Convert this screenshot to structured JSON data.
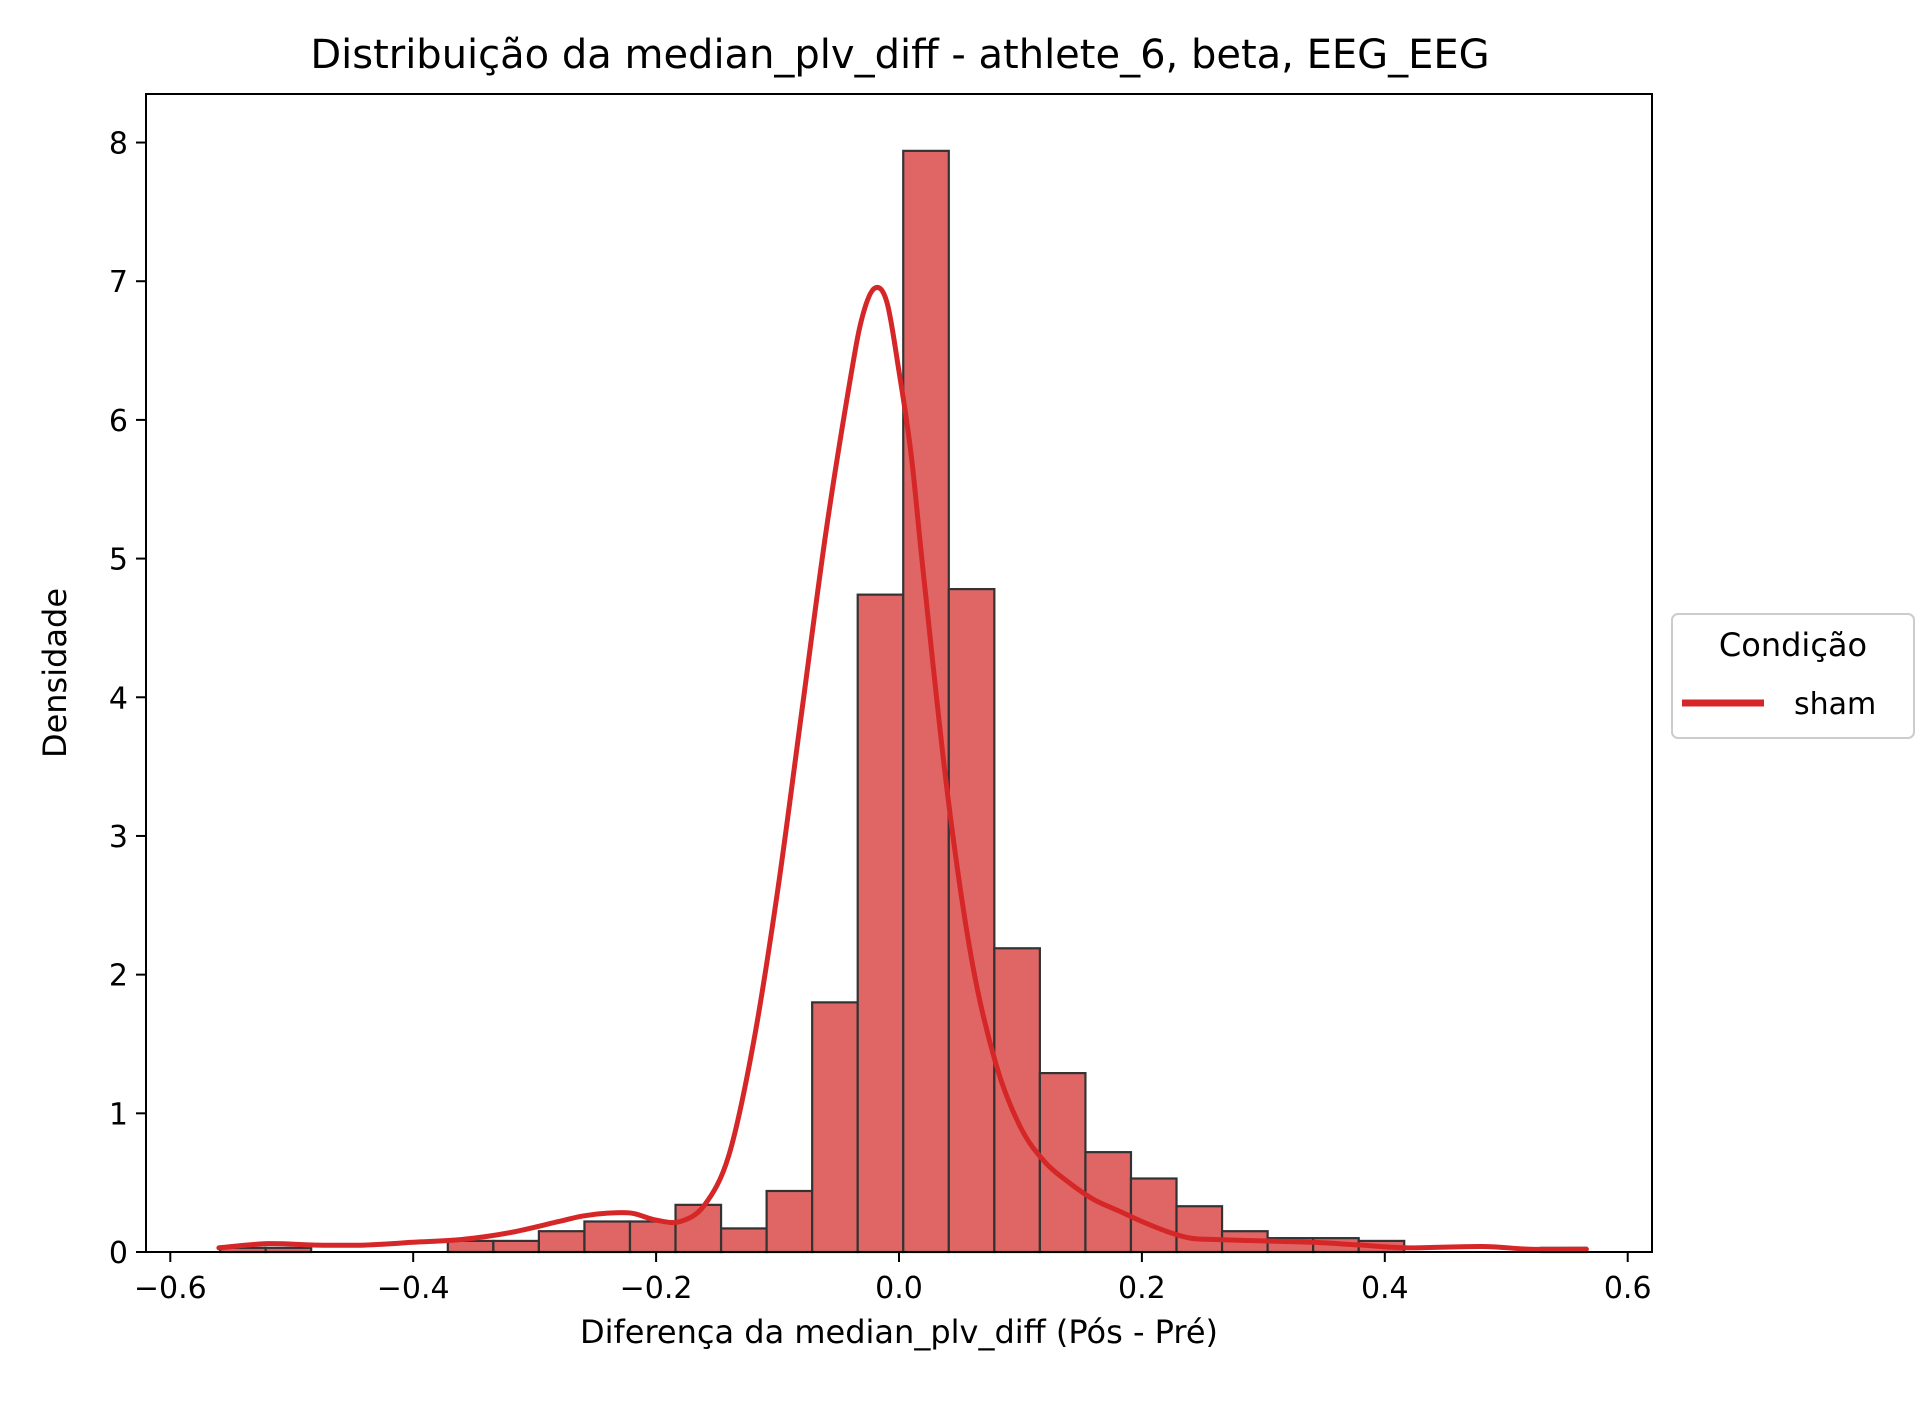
{
  "colors": {
    "bar_fill": "#e06666",
    "bar_edge": "#333333",
    "kde_line": "#d62728",
    "axis": "#000000",
    "background": "#ffffff"
  },
  "chart_data": {
    "type": "bar",
    "title": "Distribuição da median_plv_diff - athlete_6, beta, EEG_EEG",
    "xlabel": "Diferença da median_plv_diff (Pós - Pré)",
    "ylabel": "Densidade",
    "xlim": [
      -0.62,
      0.62
    ],
    "ylim": [
      0,
      8.35
    ],
    "xticks": [
      -0.6,
      -0.4,
      -0.2,
      0.0,
      0.2,
      0.4,
      0.6
    ],
    "xtick_labels": [
      "−0.6",
      "−0.4",
      "−0.2",
      "0.0",
      "0.2",
      "0.4",
      "0.6"
    ],
    "yticks": [
      0,
      1,
      2,
      3,
      4,
      5,
      6,
      7,
      8
    ],
    "ytick_labels": [
      "0",
      "1",
      "2",
      "3",
      "4",
      "5",
      "6",
      "7",
      "8"
    ],
    "grid": false,
    "bins": {
      "x_start": -0.559,
      "width": 0.0375,
      "values": [
        0.03,
        0.03,
        0.0,
        0.0,
        0.0,
        0.08,
        0.08,
        0.15,
        0.22,
        0.22,
        0.34,
        0.17,
        0.44,
        1.8,
        4.74,
        7.94,
        4.78,
        2.19,
        1.29,
        0.72,
        0.53,
        0.33,
        0.15,
        0.1,
        0.1,
        0.08,
        0.0,
        0.0,
        0.0,
        0.03
      ]
    },
    "series": [
      {
        "name": "sham",
        "type": "line",
        "x": [
          -0.56,
          -0.52,
          -0.48,
          -0.44,
          -0.4,
          -0.36,
          -0.32,
          -0.28,
          -0.26,
          -0.24,
          -0.22,
          -0.2,
          -0.18,
          -0.16,
          -0.14,
          -0.12,
          -0.1,
          -0.08,
          -0.06,
          -0.04,
          -0.03,
          -0.02,
          -0.01,
          0.0,
          0.01,
          0.02,
          0.04,
          0.06,
          0.08,
          0.1,
          0.12,
          0.14,
          0.16,
          0.18,
          0.2,
          0.22,
          0.24,
          0.26,
          0.3,
          0.34,
          0.38,
          0.42,
          0.48,
          0.52,
          0.566
        ],
        "y": [
          0.03,
          0.06,
          0.05,
          0.05,
          0.07,
          0.09,
          0.14,
          0.22,
          0.26,
          0.28,
          0.28,
          0.23,
          0.22,
          0.34,
          0.7,
          1.5,
          2.6,
          3.9,
          5.2,
          6.3,
          6.75,
          6.95,
          6.85,
          6.35,
          5.75,
          4.9,
          3.3,
          2.1,
          1.35,
          0.9,
          0.65,
          0.5,
          0.38,
          0.3,
          0.22,
          0.15,
          0.1,
          0.09,
          0.08,
          0.07,
          0.05,
          0.03,
          0.04,
          0.02,
          0.02
        ]
      }
    ],
    "legend": {
      "title": "Condição",
      "entries": [
        "sham"
      ],
      "placement": "right"
    }
  }
}
